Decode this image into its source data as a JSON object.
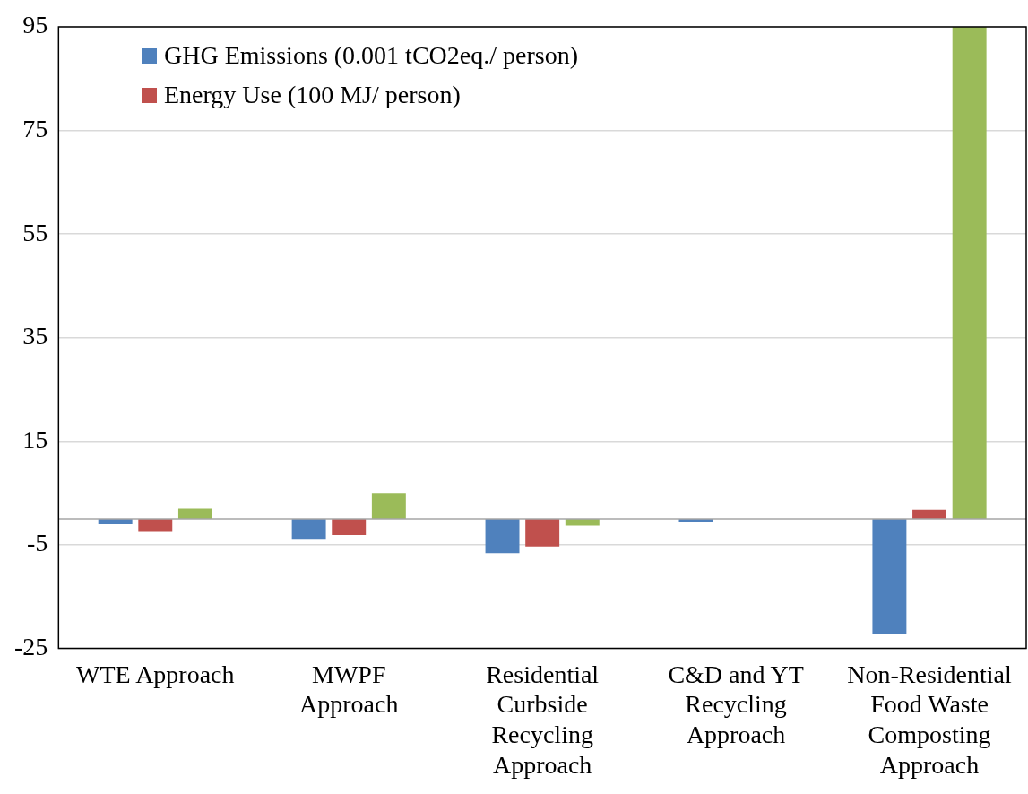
{
  "chart_data": {
    "type": "bar",
    "categories": [
      "WTE Approach",
      "MWPF Approach",
      "Residential Curbside Recycling Approach",
      "C&D and YT Recycling Approach",
      "Non-Residential Food Waste Composting Approach"
    ],
    "series": [
      {
        "name": "GHG Emissions (0.001 tCO2eq./ person)",
        "color": "#4f81bd",
        "values": [
          -1.0,
          -4.0,
          -6.6,
          -0.5,
          -22.2
        ]
      },
      {
        "name": "Energy Use (100 MJ/ person)",
        "color": "#c0504d",
        "values": [
          -2.5,
          -3.1,
          -5.3,
          0,
          1.8
        ]
      },
      {
        "color": "#9bbb59",
        "values": [
          2.0,
          5.0,
          -1.3,
          0,
          95
        ]
      }
    ],
    "ylim": [
      -25,
      95
    ],
    "yticks": [
      -25,
      -5,
      15,
      35,
      55,
      75,
      95
    ],
    "grid": "y",
    "legend": "top left"
  }
}
